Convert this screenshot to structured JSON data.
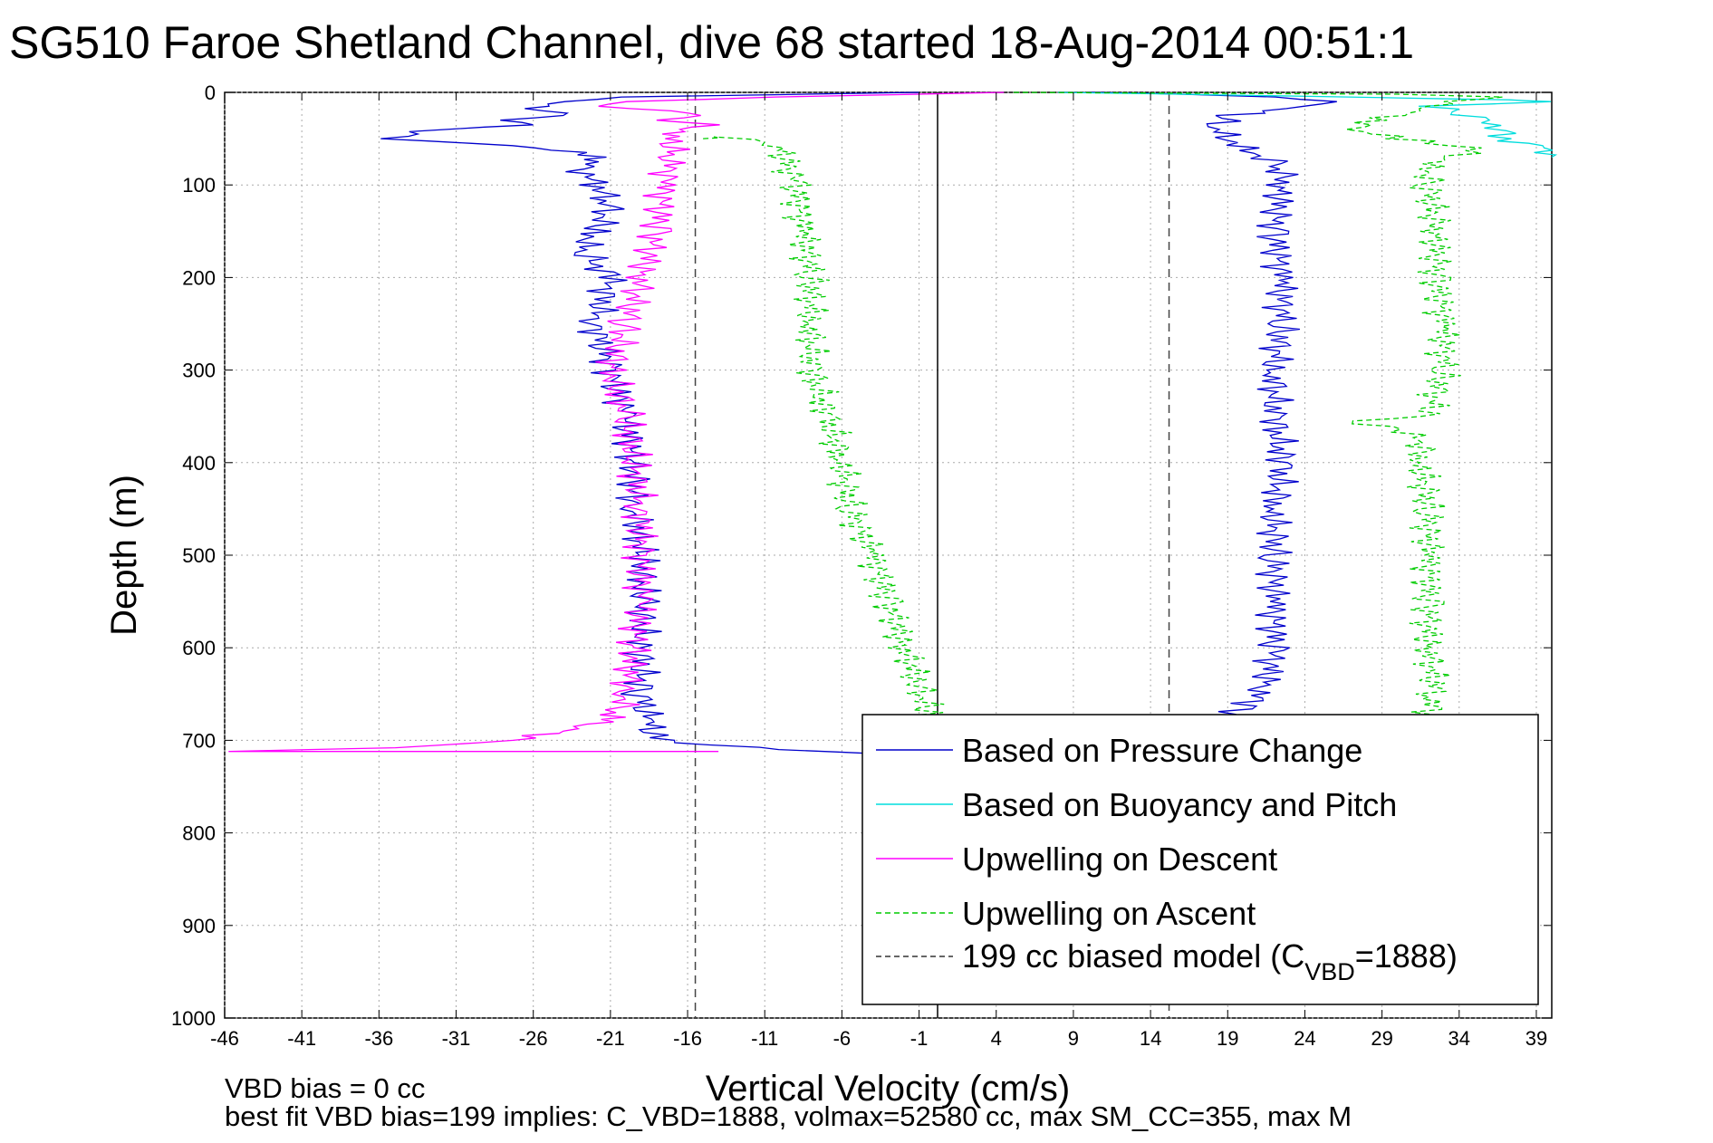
{
  "chart_data": {
    "type": "line",
    "title": "SG510 Faroe Shetland Channel, dive 68 started 18-Aug-2014 00:51:1",
    "xlabel": "Vertical Velocity (cm/s)",
    "ylabel": "Depth (m)",
    "xlim": [
      -46,
      40
    ],
    "ylim": [
      0,
      1000
    ],
    "y_reversed": true,
    "grid": true,
    "x_ticks": [
      "-46",
      "-41",
      "-36",
      "-31",
      "-26",
      "-21",
      "-16",
      "-11",
      "-6",
      "-1",
      "4",
      "9",
      "14",
      "19",
      "24",
      "29",
      "34",
      "39"
    ],
    "y_ticks": [
      "0",
      "100",
      "200",
      "300",
      "400",
      "500",
      "600",
      "700",
      "800",
      "900",
      "1000"
    ],
    "legend_position": "bottom-right",
    "legend": [
      {
        "label": "Based on Pressure Change",
        "color": "#0000cc",
        "dash": "solid"
      },
      {
        "label": "Based on Buoyancy and Pitch",
        "color": "#00dddd",
        "dash": "solid"
      },
      {
        "label": "Upwelling on Descent",
        "color": "#ff00ff",
        "dash": "solid"
      },
      {
        "label": "Upwelling on Ascent",
        "color": "#00cc00",
        "dash": "dashed"
      },
      {
        "label_main": "199 cc biased model (C",
        "label_sub": "VBD",
        "label_end": "=1888)",
        "color": "#333333",
        "dash": "dashed"
      }
    ],
    "reference_lines": [
      {
        "x": 0.2,
        "style": "solid",
        "color": "#000000"
      },
      {
        "x": -15.5,
        "style": "dashed",
        "color": "#444444"
      },
      {
        "x": 15.2,
        "style": "dashed",
        "color": "#444444"
      }
    ],
    "series": [
      {
        "name": "Based on Pressure Change",
        "color": "#0000cc",
        "points": [
          [
            -1,
            0
          ],
          [
            -20,
            5
          ],
          [
            -24,
            10
          ],
          [
            -26,
            15
          ],
          [
            -24,
            25
          ],
          [
            -28,
            30
          ],
          [
            -26,
            35
          ],
          [
            -32,
            40
          ],
          [
            -36,
            50
          ],
          [
            -30,
            55
          ],
          [
            -25,
            60
          ],
          [
            -22,
            70
          ],
          [
            -23,
            80
          ],
          [
            -22,
            100
          ],
          [
            -21,
            120
          ],
          [
            -22,
            150
          ],
          [
            -23,
            170
          ],
          [
            -21,
            200
          ],
          [
            -22,
            250
          ],
          [
            -21,
            300
          ],
          [
            -20,
            350
          ],
          [
            -19.5,
            400
          ],
          [
            -19.5,
            450
          ],
          [
            -19,
            500
          ],
          [
            -19,
            550
          ],
          [
            -19,
            600
          ],
          [
            -19,
            650
          ],
          [
            -18.5,
            680
          ],
          [
            -18,
            700
          ],
          [
            -10,
            710
          ],
          [
            -3,
            715
          ],
          [
            1,
            712
          ]
        ]
      },
      {
        "name": "Based on Pressure Change",
        "color": "#0000cc",
        "points": [
          [
            19,
            675
          ],
          [
            20.5,
            660
          ],
          [
            21.5,
            640
          ],
          [
            22,
            600
          ],
          [
            22,
            550
          ],
          [
            22,
            500
          ],
          [
            22,
            450
          ],
          [
            22.5,
            400
          ],
          [
            22,
            350
          ],
          [
            22,
            300
          ],
          [
            22.5,
            250
          ],
          [
            22.5,
            200
          ],
          [
            22,
            150
          ],
          [
            22.5,
            100
          ],
          [
            22.5,
            80
          ],
          [
            20,
            60
          ],
          [
            18,
            40
          ],
          [
            19,
            25
          ],
          [
            24,
            15
          ],
          [
            26,
            10
          ],
          [
            22,
            5
          ],
          [
            16,
            2
          ],
          [
            10,
            0
          ]
        ]
      },
      {
        "name": "Based on Buoyancy and Pitch",
        "color": "#00dddd",
        "points": [
          [
            8,
            0
          ],
          [
            20,
            3
          ],
          [
            30,
            6
          ],
          [
            37,
            8
          ],
          [
            40,
            10
          ],
          [
            32,
            15
          ],
          [
            36,
            30
          ],
          [
            37,
            50
          ],
          [
            39,
            60
          ],
          [
            40,
            70
          ]
        ]
      },
      {
        "name": "Upwelling on Descent",
        "color": "#ff00ff",
        "points": [
          [
            4.5,
            0
          ],
          [
            -10,
            5
          ],
          [
            -20,
            10
          ],
          [
            -22,
            15
          ],
          [
            -17,
            20
          ],
          [
            -15,
            25
          ],
          [
            -18,
            30
          ],
          [
            -14,
            35
          ],
          [
            -17,
            40
          ],
          [
            -17,
            50
          ],
          [
            -17,
            70
          ],
          [
            -17.5,
            100
          ],
          [
            -18,
            150
          ],
          [
            -19,
            200
          ],
          [
            -20,
            250
          ],
          [
            -21,
            300
          ],
          [
            -20,
            350
          ],
          [
            -19.5,
            400
          ],
          [
            -19,
            450
          ],
          [
            -19,
            500
          ],
          [
            -19,
            550
          ],
          [
            -19.5,
            600
          ],
          [
            -20,
            650
          ],
          [
            -20.5,
            670
          ],
          [
            -22,
            680
          ],
          [
            -24,
            690
          ],
          [
            -27,
            700
          ],
          [
            -35,
            708
          ],
          [
            -46,
            712
          ],
          [
            -14,
            712
          ]
        ]
      },
      {
        "name": "Upwelling on Ascent",
        "color": "#00cc00",
        "points": [
          [
            -15,
            50
          ],
          [
            -13,
            48
          ],
          [
            -10,
            60
          ],
          [
            -9,
            100
          ],
          [
            -8.5,
            150
          ],
          [
            -8,
            200
          ],
          [
            -8,
            250
          ],
          [
            -8,
            300
          ],
          [
            -7,
            350
          ],
          [
            -6,
            400
          ],
          [
            -5.5,
            450
          ],
          [
            -4,
            500
          ],
          [
            -3,
            550
          ],
          [
            -2,
            600
          ],
          [
            -1,
            640
          ],
          [
            -0.5,
            670
          ],
          [
            0,
            690
          ]
        ]
      },
      {
        "name": "Upwelling on Ascent",
        "color": "#00cc00",
        "points": [
          [
            32,
            675
          ],
          [
            32.5,
            650
          ],
          [
            32,
            600
          ],
          [
            32,
            550
          ],
          [
            32,
            500
          ],
          [
            32,
            450
          ],
          [
            31.5,
            400
          ],
          [
            31.5,
            370
          ],
          [
            27,
            355
          ],
          [
            32,
            350
          ],
          [
            33,
            300
          ],
          [
            33,
            250
          ],
          [
            32.5,
            200
          ],
          [
            32.5,
            150
          ],
          [
            32,
            100
          ],
          [
            32,
            80
          ],
          [
            35,
            60
          ],
          [
            30,
            50
          ],
          [
            27,
            40
          ],
          [
            29,
            30
          ],
          [
            31,
            20
          ],
          [
            33,
            10
          ],
          [
            37,
            5
          ],
          [
            30,
            2
          ],
          [
            5,
            0
          ]
        ]
      }
    ]
  },
  "footer": {
    "line1": "VBD bias = 0 cc",
    "line2": "best fit VBD bias=199 implies: C_VBD=1888, volmax=52580 cc, max SM_CC=355, max M"
  }
}
